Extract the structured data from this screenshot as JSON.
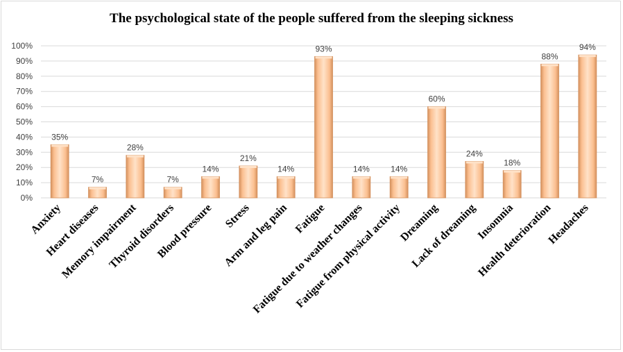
{
  "chart_data": {
    "type": "bar",
    "title": "The psychological state of the people suffered from the sleeping sickness",
    "xlabel": "",
    "ylabel": "",
    "categories": [
      "Anxiety",
      "Heart diseases",
      "Memory impairment",
      "Thyroid disorders",
      "Blood pressure",
      "Stress",
      "Arm and leg pain",
      "Fatigue",
      "Fatigue due to weather changes",
      "Fatigue from physical activity",
      "Dreaming",
      "Lack of dreaming",
      "Insomnia",
      "Health deterioration",
      "Headaches"
    ],
    "values": [
      35,
      7,
      28,
      7,
      14,
      21,
      14,
      93,
      14,
      14,
      60,
      24,
      18,
      88,
      94
    ],
    "data_labels": [
      "35%",
      "7%",
      "28%",
      "7%",
      "14%",
      "21%",
      "14%",
      "93%",
      "14%",
      "14%",
      "60%",
      "24%",
      "18%",
      "88%",
      "94%"
    ],
    "ylim": [
      0,
      100
    ],
    "yticks": [
      "0%",
      "10%",
      "20%",
      "30%",
      "40%",
      "50%",
      "60%",
      "70%",
      "80%",
      "90%",
      "100%"
    ],
    "grid": true,
    "legend": "none",
    "colors": {
      "bar_fill": "#fbbf90",
      "bar_edge": "#d4915e",
      "bar_highlight": "#ffe2c8",
      "grid": "#d9d9d9"
    }
  }
}
